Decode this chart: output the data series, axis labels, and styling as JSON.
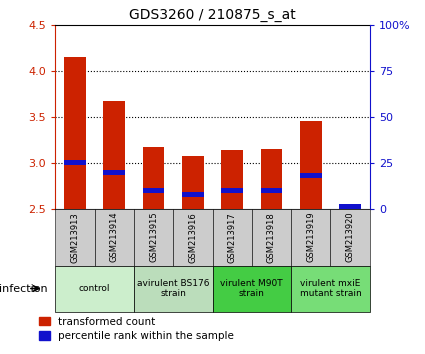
{
  "title": "GDS3260 / 210875_s_at",
  "samples": [
    "GSM213913",
    "GSM213914",
    "GSM213915",
    "GSM213916",
    "GSM213917",
    "GSM213918",
    "GSM213919",
    "GSM213920"
  ],
  "transformed_counts": [
    4.15,
    3.67,
    3.17,
    3.07,
    3.14,
    3.15,
    3.46,
    2.5
  ],
  "percentile_ranks": [
    25,
    20,
    10,
    8,
    10,
    10,
    18,
    1
  ],
  "bar_bottom": 2.5,
  "ylim": [
    2.5,
    4.5
  ],
  "yticks_left": [
    2.5,
    3.0,
    3.5,
    4.0,
    4.5
  ],
  "yticks_right": [
    0,
    25,
    50,
    75,
    100
  ],
  "bar_color": "#cc2200",
  "blue_color": "#1111cc",
  "groups": [
    {
      "label": "control",
      "samples": [
        0,
        1
      ],
      "color": "#cceecc"
    },
    {
      "label": "avirulent BS176\nstrain",
      "samples": [
        2,
        3
      ],
      "color": "#bbddbb"
    },
    {
      "label": "virulent M90T\nstrain",
      "samples": [
        4,
        5
      ],
      "color": "#44cc44"
    },
    {
      "label": "virulent mxiE\nmutant strain",
      "samples": [
        6,
        7
      ],
      "color": "#77dd77"
    }
  ],
  "infection_label": "infection",
  "legend_red": "transformed count",
  "legend_blue": "percentile rank within the sample",
  "bar_width": 0.55,
  "grid_yticks": [
    3.0,
    3.5,
    4.0
  ],
  "sample_area_color": "#cccccc",
  "group_area_colors": [
    "#cceecc",
    "#bbddbb",
    "#44cc44",
    "#77dd77"
  ]
}
